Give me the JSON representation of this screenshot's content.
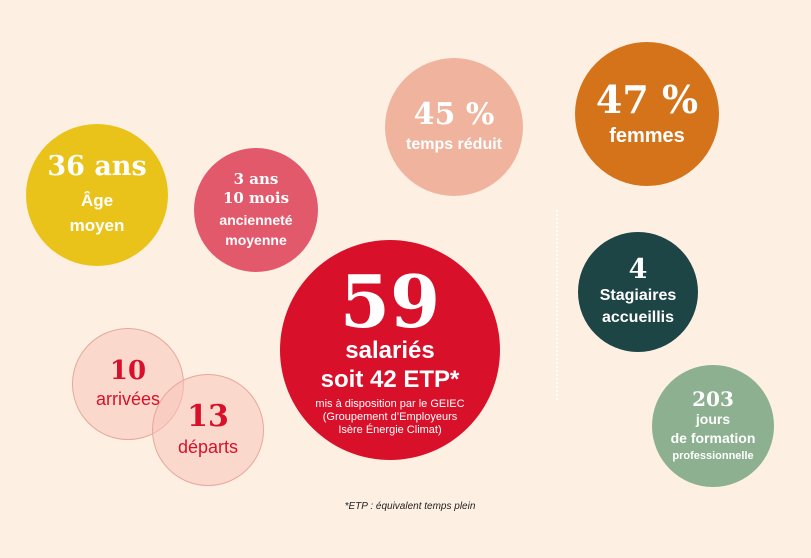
{
  "stats": {
    "age": {
      "value": "36 ans",
      "label_line1": "Âge",
      "label_line2": "moyen",
      "color": "#eac31a"
    },
    "anciennete": {
      "value_line1": "3 ans",
      "value_line2": "10 mois",
      "label_line1": "ancienneté",
      "label_line2": "moyenne",
      "color": "#e2596c"
    },
    "temps_reduit": {
      "value": "45 %",
      "label": "temps réduit",
      "color": "#f0b49e"
    },
    "femmes": {
      "value": "47 %",
      "label": "femmes",
      "color": "#d5731a"
    },
    "salaries": {
      "value": "59",
      "label_line1": "salariés",
      "label_line2": "soit 42 ETP*",
      "sub_line1": "mis à disposition par le GEIEC",
      "sub_line2": "(Groupement d’Employeurs",
      "sub_line3": "Isère Énergie Climat)",
      "color": "#d9102a"
    },
    "stagiaires": {
      "value": "4",
      "label_line1": "Stagiaires",
      "label_line2": "accueillis",
      "color": "#1e4546"
    },
    "formation": {
      "value": "203",
      "label_line1": "jours",
      "label_line2": "de formation",
      "label_line3": "professionnelle",
      "color": "#8cb090"
    },
    "arrivees": {
      "value": "10",
      "label": "arrivées"
    },
    "departs": {
      "value": "13",
      "label": "départs"
    }
  },
  "footnote": "*ETP : équivalent temps plein"
}
